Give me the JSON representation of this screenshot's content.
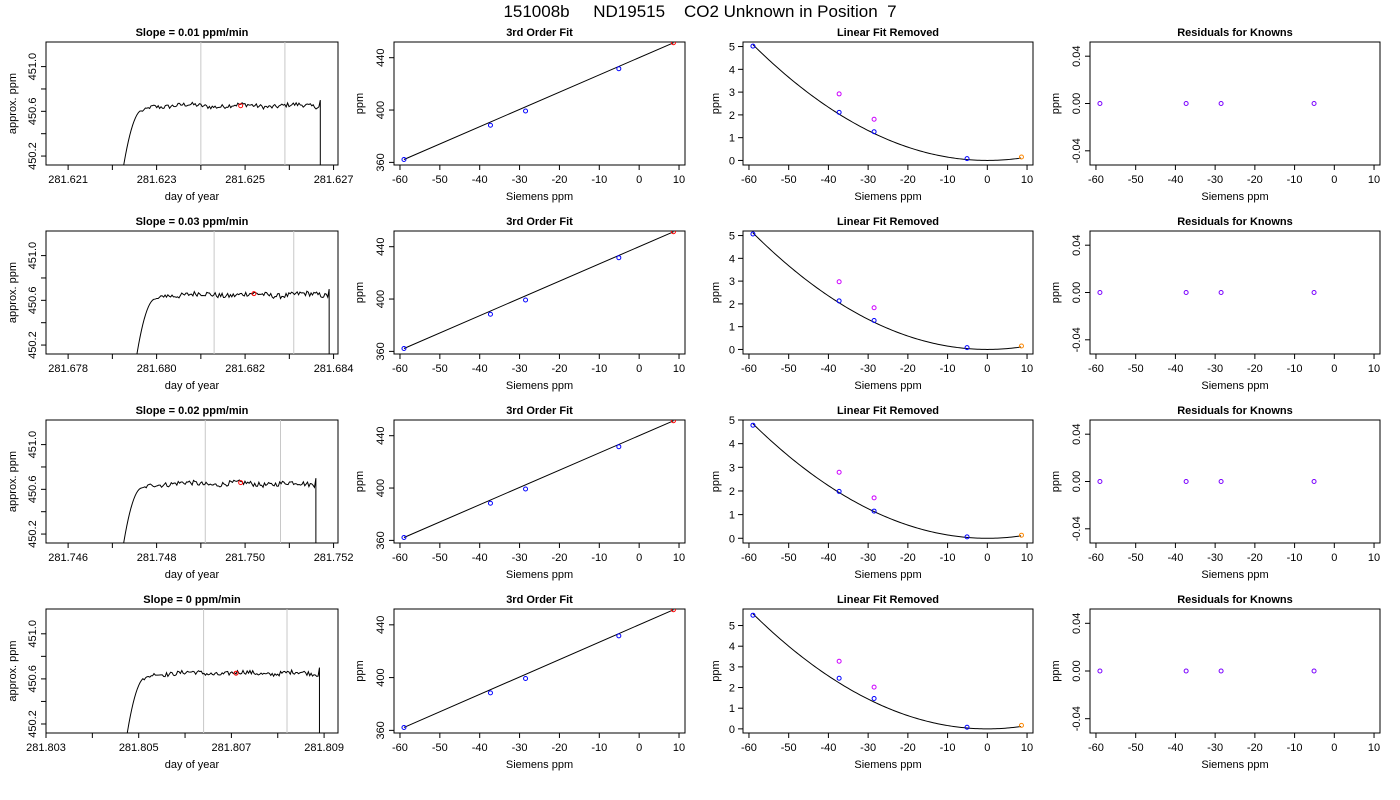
{
  "page_title": "151008b     ND19515    CO2 Unknown in Position  7",
  "colors": {
    "trace": "#000000",
    "marker_line": "#c8c8c8",
    "unknown": "#ff0000",
    "known": "#0000ff",
    "raw_known": "#cc00ff",
    "residual": "#7a00ff",
    "fit_line": "#000000"
  },
  "chart_data": [
    {
      "row": 1,
      "panel": "trace",
      "type": "line",
      "title": "Slope =  0.01  ppm/min",
      "xlabel": "day of year",
      "ylabel": "approx. ppm",
      "xlim": [
        281.6205,
        281.6271
      ],
      "ylim": [
        450.12,
        451.22
      ],
      "xticks": [
        281.621,
        281.623,
        281.625,
        281.627
      ],
      "xtick_labels": [
        "281.621",
        "281.623",
        "281.625",
        "281.627"
      ],
      "yticks": [
        450.2,
        450.6,
        451.0
      ],
      "ytick_labels": [
        "450.2",
        "450.6",
        "451.0"
      ],
      "trace_start": 281.6222,
      "trace_end": 281.6267,
      "plateau": 450.65,
      "noise": 0.025,
      "window": [
        281.624,
        281.6259
      ],
      "unknown_point": {
        "x": 281.6249,
        "y": 450.65
      }
    },
    {
      "row": 1,
      "panel": "fit",
      "type": "scatter",
      "title": "3rd Order Fit",
      "xlabel": "Siemens ppm",
      "ylabel": "ppm",
      "xlim": [
        -61.5,
        11.5
      ],
      "ylim": [
        358,
        452
      ],
      "xticks": [
        -60,
        -50,
        -40,
        -30,
        -20,
        -10,
        0,
        10
      ],
      "xtick_labels": [
        "-60",
        "-50",
        "-40",
        "-30",
        "-20",
        "-10",
        "0",
        "10"
      ],
      "yticks": [
        360,
        400,
        440
      ],
      "ytick_labels": [
        "360",
        "400",
        "440"
      ],
      "knowns": [
        [
          -59,
          362.2
        ],
        [
          -37.3,
          388.4
        ],
        [
          -28.5,
          399.3
        ],
        [
          -5.1,
          431.6
        ]
      ],
      "unknown": [
        8.6,
        451.4
      ]
    },
    {
      "row": 1,
      "panel": "residual_fit",
      "type": "scatter",
      "title": "Linear Fit Removed",
      "xlabel": "Siemens ppm",
      "ylabel": "ppm",
      "xlim": [
        -61.5,
        11.5
      ],
      "ylim": [
        -0.2,
        5.2
      ],
      "xticks": [
        -60,
        -50,
        -40,
        -30,
        -20,
        -10,
        0,
        10
      ],
      "xtick_labels": [
        "-60",
        "-50",
        "-40",
        "-30",
        "-20",
        "-10",
        "0",
        "10"
      ],
      "yticks": [
        0,
        1,
        2,
        3,
        4,
        5
      ],
      "ytick_labels": [
        "0",
        "1",
        "2",
        "3",
        "4",
        "5"
      ],
      "knowns": [
        [
          -59,
          5.02
        ],
        [
          -37.3,
          2.11
        ],
        [
          -28.5,
          1.26
        ],
        [
          -5.1,
          0.08
        ]
      ],
      "raw_knowns": [
        [
          -37.3,
          2.92
        ],
        [
          -28.5,
          1.81
        ]
      ],
      "unknown": [
        8.6,
        0.15
      ],
      "curve": {
        "a": 0.00146,
        "b": 0.0,
        "c": 0.0
      }
    },
    {
      "row": 1,
      "panel": "residuals",
      "type": "scatter",
      "title": "Residuals for Knowns",
      "xlabel": "Siemens ppm",
      "ylabel": "ppm",
      "xlim": [
        -61.5,
        11.5
      ],
      "ylim": [
        -0.052,
        0.052
      ],
      "xticks": [
        -60,
        -50,
        -40,
        -30,
        -20,
        -10,
        0,
        10
      ],
      "xtick_labels": [
        "-60",
        "-50",
        "-40",
        "-30",
        "-20",
        "-10",
        "0",
        "10"
      ],
      "yticks": [
        -0.04,
        0.0,
        0.04
      ],
      "ytick_labels": [
        "-0.04",
        "0.00",
        "0.04"
      ],
      "points": [
        [
          -59,
          0
        ],
        [
          -37.3,
          0
        ],
        [
          -28.5,
          0
        ],
        [
          -5.1,
          0
        ]
      ]
    },
    {
      "row": 2,
      "panel": "trace",
      "type": "line",
      "title": "Slope =  0.03  ppm/min",
      "xlabel": "day of year",
      "ylabel": "approx. ppm",
      "xlim": [
        281.6775,
        281.6841
      ],
      "ylim": [
        450.12,
        451.22
      ],
      "xticks": [
        281.678,
        281.68,
        281.682,
        281.684
      ],
      "xtick_labels": [
        "281.678",
        "281.680",
        "281.682",
        "281.684"
      ],
      "yticks": [
        450.2,
        450.6,
        451.0
      ],
      "ytick_labels": [
        "450.2",
        "450.6",
        "451.0"
      ],
      "trace_start": 281.6795,
      "trace_end": 281.6839,
      "plateau": 450.65,
      "noise": 0.03,
      "window": [
        281.6813,
        281.6831
      ],
      "unknown_point": {
        "x": 281.6822,
        "y": 450.66
      }
    },
    {
      "row": 2,
      "panel": "fit",
      "type": "scatter",
      "title": "3rd Order Fit",
      "xlabel": "Siemens ppm",
      "ylabel": "ppm",
      "xlim": [
        -61.5,
        11.5
      ],
      "ylim": [
        358,
        452
      ],
      "xticks": [
        -60,
        -50,
        -40,
        -30,
        -20,
        -10,
        0,
        10
      ],
      "xtick_labels": [
        "-60",
        "-50",
        "-40",
        "-30",
        "-20",
        "-10",
        "0",
        "10"
      ],
      "yticks": [
        360,
        400,
        440
      ],
      "ytick_labels": [
        "360",
        "400",
        "440"
      ],
      "knowns": [
        [
          -59,
          362.2
        ],
        [
          -37.3,
          388.4
        ],
        [
          -28.5,
          399.3
        ],
        [
          -5.1,
          431.6
        ]
      ],
      "unknown": [
        8.6,
        451.4
      ]
    },
    {
      "row": 2,
      "panel": "residual_fit",
      "type": "scatter",
      "title": "Linear Fit Removed",
      "xlabel": "Siemens ppm",
      "ylabel": "ppm",
      "xlim": [
        -61.5,
        11.5
      ],
      "ylim": [
        -0.2,
        5.2
      ],
      "xticks": [
        -60,
        -50,
        -40,
        -30,
        -20,
        -10,
        0,
        10
      ],
      "xtick_labels": [
        "-60",
        "-50",
        "-40",
        "-30",
        "-20",
        "-10",
        "0",
        "10"
      ],
      "yticks": [
        0,
        1,
        2,
        3,
        4,
        5
      ],
      "ytick_labels": [
        "0",
        "1",
        "2",
        "3",
        "4",
        "5"
      ],
      "knowns": [
        [
          -59,
          5.07
        ],
        [
          -37.3,
          2.13
        ],
        [
          -28.5,
          1.27
        ],
        [
          -5.1,
          0.08
        ]
      ],
      "raw_knowns": [
        [
          -37.3,
          2.97
        ],
        [
          -28.5,
          1.83
        ]
      ],
      "unknown": [
        8.6,
        0.15
      ],
      "curve": {
        "a": 0.00147,
        "b": 0.0,
        "c": 0.0
      }
    },
    {
      "row": 2,
      "panel": "residuals",
      "type": "scatter",
      "title": "Residuals for Knowns",
      "xlabel": "Siemens ppm",
      "ylabel": "ppm",
      "xlim": [
        -61.5,
        11.5
      ],
      "ylim": [
        -0.052,
        0.052
      ],
      "xticks": [
        -60,
        -50,
        -40,
        -30,
        -20,
        -10,
        0,
        10
      ],
      "xtick_labels": [
        "-60",
        "-50",
        "-40",
        "-30",
        "-20",
        "-10",
        "0",
        "10"
      ],
      "yticks": [
        -0.04,
        0.0,
        0.04
      ],
      "ytick_labels": [
        "-0.04",
        "0.00",
        "0.04"
      ],
      "points": [
        [
          -59,
          0
        ],
        [
          -37.3,
          0
        ],
        [
          -28.5,
          0
        ],
        [
          -5.1,
          0
        ]
      ]
    },
    {
      "row": 3,
      "panel": "trace",
      "type": "line",
      "title": "Slope =  0.02  ppm/min",
      "xlabel": "day of year",
      "ylabel": "approx. ppm",
      "xlim": [
        281.7455,
        281.7521
      ],
      "ylim": [
        450.12,
        451.22
      ],
      "xticks": [
        281.746,
        281.748,
        281.75,
        281.752
      ],
      "xtick_labels": [
        "281.746",
        "281.748",
        "281.750",
        "281.752"
      ],
      "yticks": [
        450.2,
        450.6,
        451.0
      ],
      "ytick_labels": [
        "450.2",
        "450.6",
        "451.0"
      ],
      "trace_start": 281.7472,
      "trace_end": 281.7516,
      "plateau": 450.65,
      "noise": 0.028,
      "window": [
        281.7491,
        281.7508
      ],
      "unknown_point": {
        "x": 281.7499,
        "y": 450.66
      }
    },
    {
      "row": 3,
      "panel": "fit",
      "type": "scatter",
      "title": "3rd Order Fit",
      "xlabel": "Siemens ppm",
      "ylabel": "ppm",
      "xlim": [
        -61.5,
        11.5
      ],
      "ylim": [
        358,
        452
      ],
      "xticks": [
        -60,
        -50,
        -40,
        -30,
        -20,
        -10,
        0,
        10
      ],
      "xtick_labels": [
        "-60",
        "-50",
        "-40",
        "-30",
        "-20",
        "-10",
        "0",
        "10"
      ],
      "yticks": [
        360,
        400,
        440
      ],
      "ytick_labels": [
        "360",
        "400",
        "440"
      ],
      "knowns": [
        [
          -59,
          362.2
        ],
        [
          -37.3,
          388.4
        ],
        [
          -28.5,
          399.3
        ],
        [
          -5.1,
          431.6
        ]
      ],
      "unknown": [
        8.6,
        451.4
      ]
    },
    {
      "row": 3,
      "panel": "residual_fit",
      "type": "scatter",
      "title": "Linear Fit Removed",
      "xlabel": "Siemens ppm",
      "ylabel": "ppm",
      "xlim": [
        -61.5,
        11.5
      ],
      "ylim": [
        -0.2,
        5.0
      ],
      "xticks": [
        -60,
        -50,
        -40,
        -30,
        -20,
        -10,
        0,
        10
      ],
      "xtick_labels": [
        "-60",
        "-50",
        "-40",
        "-30",
        "-20",
        "-10",
        "0",
        "10"
      ],
      "yticks": [
        0,
        1,
        2,
        3,
        4,
        5
      ],
      "ytick_labels": [
        "0",
        "1",
        "2",
        "3",
        "4",
        "5"
      ],
      "knowns": [
        [
          -59,
          4.78
        ],
        [
          -37.3,
          1.98
        ],
        [
          -28.5,
          1.15
        ],
        [
          -5.1,
          0.06
        ]
      ],
      "raw_knowns": [
        [
          -37.3,
          2.79
        ],
        [
          -28.5,
          1.71
        ]
      ],
      "unknown": [
        8.6,
        0.13
      ],
      "curve": {
        "a": 0.00139,
        "b": 0.0,
        "c": 0.0
      }
    },
    {
      "row": 3,
      "panel": "residuals",
      "type": "scatter",
      "title": "Residuals for Knowns",
      "xlabel": "Siemens ppm",
      "ylabel": "ppm",
      "xlim": [
        -61.5,
        11.5
      ],
      "ylim": [
        -0.052,
        0.052
      ],
      "xticks": [
        -60,
        -50,
        -40,
        -30,
        -20,
        -10,
        0,
        10
      ],
      "xtick_labels": [
        "-60",
        "-50",
        "-40",
        "-30",
        "-20",
        "-10",
        "0",
        "10"
      ],
      "yticks": [
        -0.04,
        0.0,
        0.04
      ],
      "ytick_labels": [
        "-0.04",
        "0.00",
        "0.04"
      ],
      "points": [
        [
          -59,
          0
        ],
        [
          -37.3,
          0
        ],
        [
          -28.5,
          0
        ],
        [
          -5.1,
          0
        ]
      ]
    },
    {
      "row": 4,
      "panel": "trace",
      "type": "line",
      "title": "Slope =  0  ppm/min",
      "xlabel": "day of year",
      "ylabel": "approx. ppm",
      "xlim": [
        281.803,
        281.8093
      ],
      "ylim": [
        450.12,
        451.22
      ],
      "xticks": [
        281.803,
        281.805,
        281.807,
        281.809
      ],
      "xtick_labels": [
        "281.803",
        "281.805",
        "281.807",
        "281.809"
      ],
      "yticks": [
        450.2,
        450.6,
        451.0
      ],
      "ytick_labels": [
        "450.2",
        "450.6",
        "451.0"
      ],
      "trace_start": 281.8047,
      "trace_end": 281.8089,
      "plateau": 450.65,
      "noise": 0.025,
      "window": [
        281.8064,
        281.8082
      ],
      "unknown_point": {
        "x": 281.8071,
        "y": 450.65
      }
    },
    {
      "row": 4,
      "panel": "fit",
      "type": "scatter",
      "title": "3rd Order Fit",
      "xlabel": "Siemens ppm",
      "ylabel": "ppm",
      "xlim": [
        -61.5,
        11.5
      ],
      "ylim": [
        358,
        452
      ],
      "xticks": [
        -60,
        -50,
        -40,
        -30,
        -20,
        -10,
        0,
        10
      ],
      "xtick_labels": [
        "-60",
        "-50",
        "-40",
        "-30",
        "-20",
        "-10",
        "0",
        "10"
      ],
      "yticks": [
        360,
        400,
        440
      ],
      "ytick_labels": [
        "360",
        "400",
        "440"
      ],
      "knowns": [
        [
          -59,
          362.2
        ],
        [
          -37.3,
          388.4
        ],
        [
          -28.5,
          399.3
        ],
        [
          -5.1,
          431.6
        ]
      ],
      "unknown": [
        8.6,
        451.4
      ]
    },
    {
      "row": 4,
      "panel": "residual_fit",
      "type": "scatter",
      "title": "Linear Fit Removed",
      "xlabel": "Siemens ppm",
      "ylabel": "ppm",
      "xlim": [
        -61.5,
        11.5
      ],
      "ylim": [
        -0.2,
        5.8
      ],
      "xticks": [
        -60,
        -50,
        -40,
        -30,
        -20,
        -10,
        0,
        10
      ],
      "xtick_labels": [
        "-60",
        "-50",
        "-40",
        "-30",
        "-20",
        "-10",
        "0",
        "10"
      ],
      "yticks": [
        0,
        1,
        2,
        3,
        4,
        5
      ],
      "ytick_labels": [
        "0",
        "1",
        "2",
        "3",
        "4",
        "5"
      ],
      "knowns": [
        [
          -59,
          5.5
        ],
        [
          -37.3,
          2.45
        ],
        [
          -28.5,
          1.47
        ],
        [
          -5.1,
          0.08
        ]
      ],
      "raw_knowns": [
        [
          -37.3,
          3.27
        ],
        [
          -28.5,
          2.02
        ]
      ],
      "unknown": [
        8.6,
        0.17
      ],
      "curve": {
        "a": 0.0016,
        "b": 0.0,
        "c": 0.0
      }
    },
    {
      "row": 4,
      "panel": "residuals",
      "type": "scatter",
      "title": "Residuals for Knowns",
      "xlabel": "Siemens ppm",
      "ylabel": "ppm",
      "xlim": [
        -61.5,
        11.5
      ],
      "ylim": [
        -0.052,
        0.052
      ],
      "xticks": [
        -60,
        -50,
        -40,
        -30,
        -20,
        -10,
        0,
        10
      ],
      "xtick_labels": [
        "-60",
        "-50",
        "-40",
        "-30",
        "-20",
        "-10",
        "0",
        "10"
      ],
      "yticks": [
        -0.04,
        0.0,
        0.04
      ],
      "ytick_labels": [
        "-0.04",
        "0.00",
        "0.04"
      ],
      "points": [
        [
          -59,
          0
        ],
        [
          -37.3,
          0
        ],
        [
          -28.5,
          0
        ],
        [
          -5.1,
          0
        ]
      ]
    }
  ]
}
